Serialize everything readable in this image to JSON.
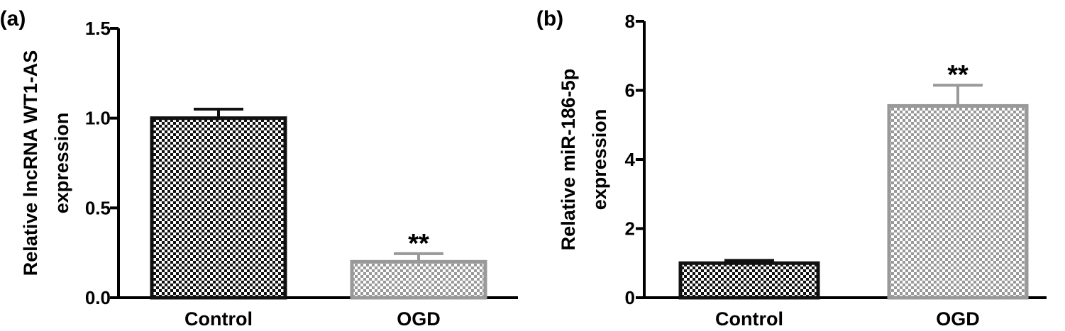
{
  "chart_data": [
    {
      "panel_label": "(a)",
      "type": "bar",
      "categories": [
        "Control",
        "OGD"
      ],
      "values": [
        1.0,
        0.2
      ],
      "errors": [
        0.05,
        0.045
      ],
      "significance": [
        "",
        "**"
      ],
      "ylabel_lines": [
        "Relative lncRNA WT1-AS",
        "expression"
      ],
      "ylim": [
        0,
        1.5
      ],
      "yticks": [
        "0.0",
        "0.5",
        "1.0",
        "1.5"
      ],
      "ytick_values": [
        0,
        0.5,
        1.0,
        1.5
      ],
      "grid": false,
      "bar_colors": [
        "#111111",
        "#999999"
      ]
    },
    {
      "panel_label": "(b)",
      "type": "bar",
      "categories": [
        "Control",
        "OGD"
      ],
      "values": [
        1.0,
        5.55
      ],
      "errors": [
        0.08,
        0.6
      ],
      "significance": [
        "",
        "**"
      ],
      "ylabel_lines": [
        "Relative miR-186-5p",
        "expression"
      ],
      "ylim": [
        0,
        8
      ],
      "yticks": [
        "0",
        "2",
        "4",
        "6",
        "8"
      ],
      "ytick_values": [
        0,
        2,
        4,
        6,
        8
      ],
      "grid": false,
      "bar_colors": [
        "#111111",
        "#999999"
      ]
    }
  ]
}
